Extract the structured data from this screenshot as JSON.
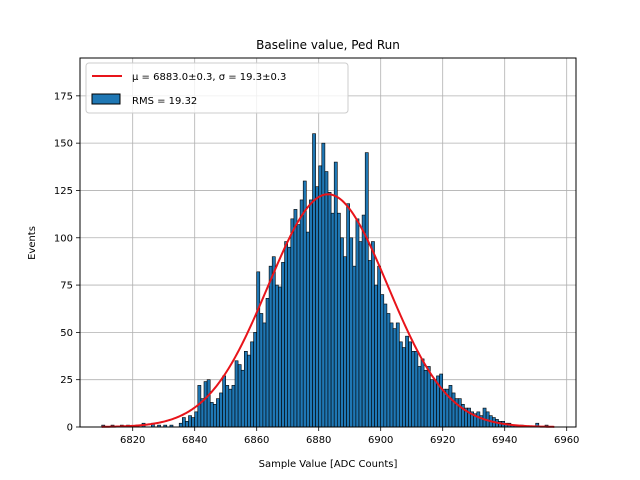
{
  "chart_data": {
    "type": "bar",
    "title": "Baseline value, Ped Run",
    "xlabel": "Sample Value [ADC Counts]",
    "ylabel": "Events",
    "xlim": [
      6803,
      6963
    ],
    "ylim": [
      0,
      195
    ],
    "xticks": [
      6820,
      6840,
      6860,
      6880,
      6900,
      6920,
      6940,
      6960
    ],
    "yticks": [
      0,
      25,
      50,
      75,
      100,
      125,
      150,
      175
    ],
    "grid": true,
    "legend_position": "top-left",
    "colors": {
      "bars": "#1f77b4",
      "bar_edge": "#000000",
      "fit": "#e8141a",
      "grid": "#b0b0b0"
    },
    "histogram": {
      "name": "RMS = 19.32",
      "bin_width": 1,
      "bins": [
        [
          6810,
          1
        ],
        [
          6813,
          1
        ],
        [
          6816,
          1
        ],
        [
          6818,
          1
        ],
        [
          6821,
          1
        ],
        [
          6823,
          2
        ],
        [
          6826,
          2
        ],
        [
          6828,
          1
        ],
        [
          6830,
          1
        ],
        [
          6832,
          1
        ],
        [
          6835,
          2
        ],
        [
          6836,
          5
        ],
        [
          6837,
          3
        ],
        [
          6838,
          6
        ],
        [
          6839,
          5
        ],
        [
          6840,
          8
        ],
        [
          6841,
          22
        ],
        [
          6842,
          15
        ],
        [
          6843,
          24
        ],
        [
          6844,
          25
        ],
        [
          6845,
          13
        ],
        [
          6846,
          12
        ],
        [
          6847,
          15
        ],
        [
          6848,
          18
        ],
        [
          6849,
          27
        ],
        [
          6850,
          22
        ],
        [
          6851,
          20
        ],
        [
          6852,
          22
        ],
        [
          6853,
          35
        ],
        [
          6854,
          33
        ],
        [
          6855,
          30
        ],
        [
          6856,
          40
        ],
        [
          6857,
          38
        ],
        [
          6858,
          45
        ],
        [
          6859,
          50
        ],
        [
          6860,
          82
        ],
        [
          6861,
          60
        ],
        [
          6862,
          55
        ],
        [
          6863,
          68
        ],
        [
          6864,
          85
        ],
        [
          6865,
          90
        ],
        [
          6866,
          75
        ],
        [
          6867,
          74
        ],
        [
          6868,
          87
        ],
        [
          6869,
          98
        ],
        [
          6870,
          95
        ],
        [
          6871,
          110
        ],
        [
          6872,
          115
        ],
        [
          6873,
          107
        ],
        [
          6874,
          120
        ],
        [
          6875,
          130
        ],
        [
          6876,
          103
        ],
        [
          6877,
          120
        ],
        [
          6878,
          155
        ],
        [
          6879,
          127
        ],
        [
          6880,
          138
        ],
        [
          6881,
          150
        ],
        [
          6882,
          135
        ],
        [
          6883,
          124
        ],
        [
          6884,
          113
        ],
        [
          6885,
          140
        ],
        [
          6886,
          113
        ],
        [
          6887,
          100
        ],
        [
          6888,
          90
        ],
        [
          6889,
          118
        ],
        [
          6890,
          100
        ],
        [
          6891,
          85
        ],
        [
          6892,
          110
        ],
        [
          6893,
          98
        ],
        [
          6894,
          112
        ],
        [
          6895,
          145
        ],
        [
          6896,
          88
        ],
        [
          6897,
          98
        ],
        [
          6898,
          75
        ],
        [
          6899,
          85
        ],
        [
          6900,
          70
        ],
        [
          6901,
          65
        ],
        [
          6902,
          60
        ],
        [
          6903,
          55
        ],
        [
          6904,
          52
        ],
        [
          6905,
          55
        ],
        [
          6906,
          45
        ],
        [
          6907,
          42
        ],
        [
          6908,
          48
        ],
        [
          6909,
          45
        ],
        [
          6910,
          40
        ],
        [
          6911,
          40
        ],
        [
          6912,
          32
        ],
        [
          6913,
          36
        ],
        [
          6914,
          30
        ],
        [
          6915,
          32
        ],
        [
          6916,
          25
        ],
        [
          6917,
          25
        ],
        [
          6918,
          27
        ],
        [
          6919,
          28
        ],
        [
          6920,
          20
        ],
        [
          6921,
          20
        ],
        [
          6922,
          22
        ],
        [
          6923,
          18
        ],
        [
          6924,
          15
        ],
        [
          6925,
          15
        ],
        [
          6926,
          12
        ],
        [
          6927,
          10
        ],
        [
          6928,
          10
        ],
        [
          6929,
          8
        ],
        [
          6930,
          7
        ],
        [
          6931,
          8
        ],
        [
          6932,
          6
        ],
        [
          6933,
          10
        ],
        [
          6934,
          8
        ],
        [
          6935,
          6
        ],
        [
          6936,
          5
        ],
        [
          6937,
          4
        ],
        [
          6938,
          3
        ],
        [
          6939,
          3
        ],
        [
          6940,
          2
        ],
        [
          6941,
          2
        ],
        [
          6942,
          1
        ],
        [
          6943,
          1
        ],
        [
          6945,
          1
        ],
        [
          6950,
          2
        ],
        [
          6953,
          1
        ]
      ]
    },
    "fit": {
      "label_mu": "μ = 6883.0±0.3",
      "label_sigma": "σ = 19.3±0.3",
      "mu": 6883.0,
      "sigma": 19.3,
      "amplitude": 123,
      "x_range": [
        6810,
        6956
      ]
    }
  }
}
